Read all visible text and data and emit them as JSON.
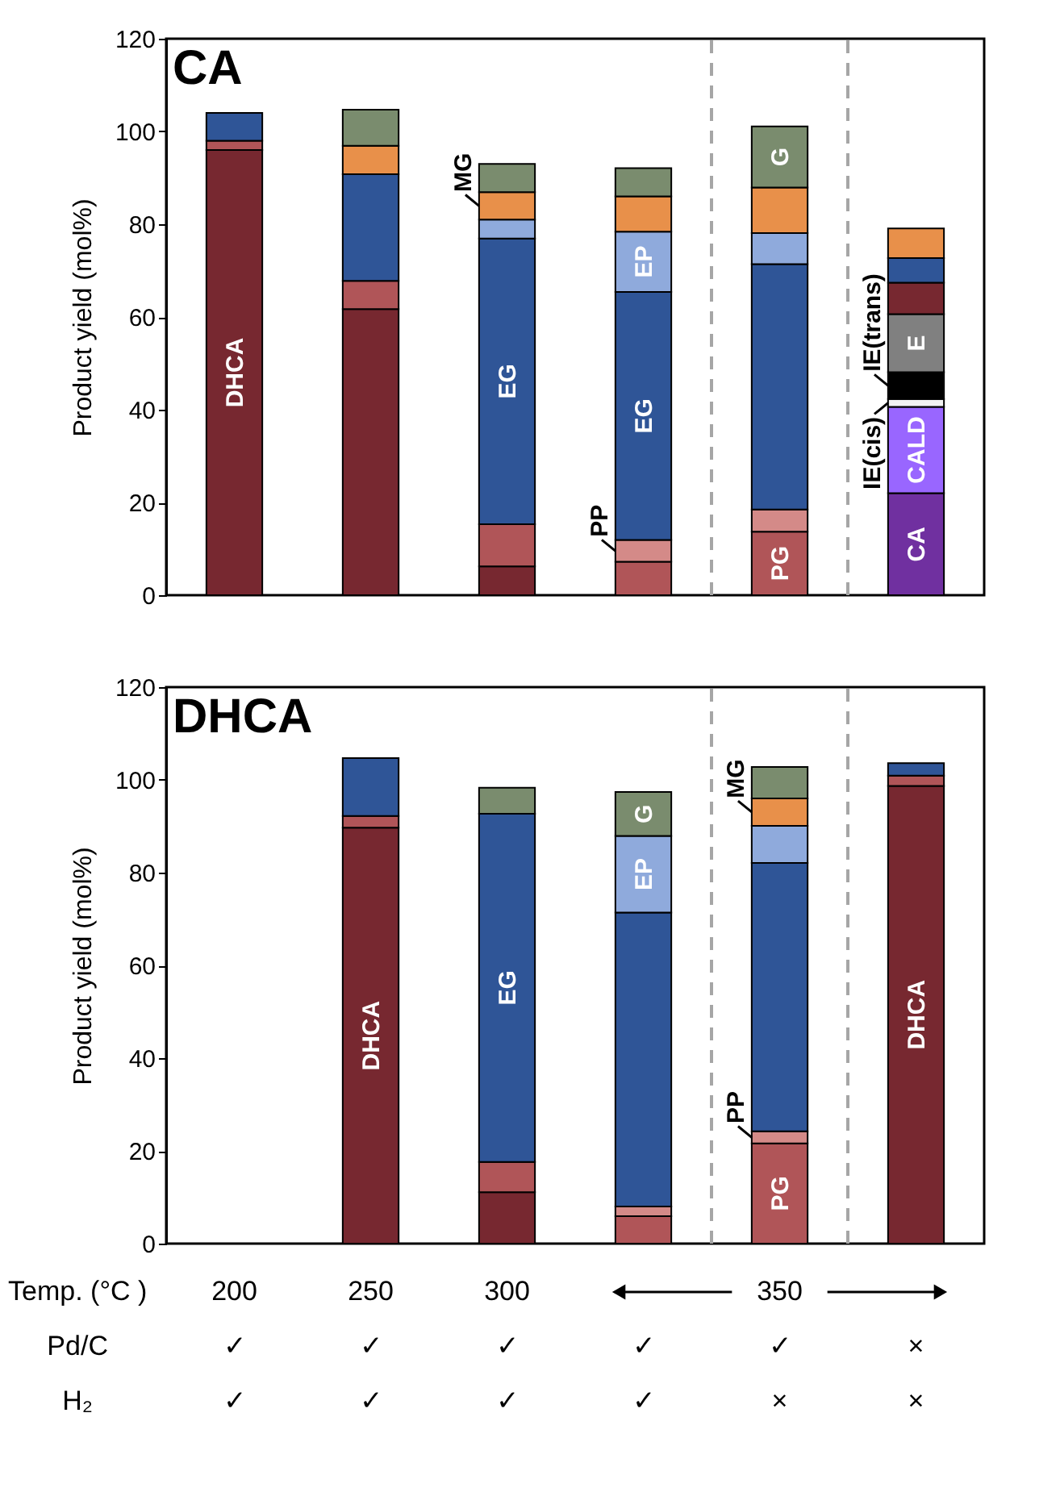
{
  "chart_data": [
    {
      "type": "bar",
      "stacked": true,
      "title": "CA",
      "ylabel": "Product yield (mol%)",
      "categories": [
        "200",
        "250",
        "300",
        null,
        "350",
        null
      ],
      "tick_labels": "y",
      "ylim": [
        0,
        120
      ],
      "yticks": [
        0,
        20,
        40,
        60,
        80,
        100,
        120
      ],
      "grid": false,
      "series": [
        {
          "color": "#7030a0",
          "values": [
            null,
            null,
            null,
            null,
            null,
            22
          ],
          "value_labels": [
            null,
            null,
            null,
            null,
            null,
            "CA"
          ]
        },
        {
          "color": "#9966ff",
          "values": [
            null,
            null,
            null,
            null,
            null,
            18.6
          ],
          "value_labels": [
            null,
            null,
            null,
            null,
            null,
            "CALD"
          ]
        },
        {
          "color": "#f2f2f2",
          "values": [
            null,
            null,
            null,
            null,
            null,
            1.7
          ],
          "value_labels": [
            null,
            null,
            null,
            null,
            null,
            "IE(cis)"
          ]
        },
        {
          "color": "#000000",
          "values": [
            null,
            null,
            null,
            null,
            null,
            5.8
          ],
          "value_labels": [
            null,
            null,
            null,
            null,
            null,
            "IE(trans)"
          ]
        },
        {
          "color": "#808080",
          "values": [
            null,
            null,
            null,
            null,
            null,
            12.5
          ],
          "value_labels": [
            null,
            null,
            null,
            null,
            null,
            "E"
          ]
        },
        {
          "color": "#772830",
          "values": [
            96,
            61.7,
            6.2,
            null,
            null,
            6.8
          ],
          "value_labels": [
            "DHCA",
            null,
            null,
            null,
            null,
            null
          ]
        },
        {
          "color": "#b05558",
          "values": [
            2,
            6.1,
            9.1,
            7.2,
            13.7,
            null
          ],
          "value_labels": [
            null,
            null,
            null,
            null,
            "PG",
            null
          ]
        },
        {
          "color": "#d48a88",
          "values": [
            null,
            null,
            null,
            4.7,
            4.8,
            null
          ],
          "value_labels": [
            null,
            null,
            null,
            "PP",
            null,
            null
          ]
        },
        {
          "color": "#2f5597",
          "values": [
            6,
            23,
            61.6,
            53.5,
            52.9,
            5.3
          ],
          "value_labels": [
            null,
            null,
            "EG",
            "EG",
            null,
            null
          ]
        },
        {
          "color": "#8faadc",
          "values": [
            null,
            null,
            4.1,
            13,
            6.7,
            null
          ],
          "value_labels": [
            null,
            null,
            null,
            "EP",
            null,
            null
          ]
        },
        {
          "color": "#e8904a",
          "values": [
            null,
            6.1,
            5.9,
            7.6,
            9.8,
            6.4
          ],
          "value_labels": [
            null,
            null,
            "MG",
            null,
            null,
            null
          ]
        },
        {
          "color": "#7a8c6e",
          "values": [
            null,
            7.8,
            6.1,
            6.1,
            13.2,
            null
          ],
          "value_labels": [
            null,
            null,
            null,
            null,
            "G",
            null
          ]
        }
      ]
    },
    {
      "type": "bar",
      "stacked": true,
      "title": "DHCA",
      "ylabel": "Product yield (mol%)",
      "xlabel": "Temp. (°C )",
      "categories": [
        "200",
        "250",
        "300",
        null,
        "350",
        null
      ],
      "ylim": [
        0,
        120
      ],
      "yticks": [
        0,
        20,
        40,
        60,
        80,
        100,
        120
      ],
      "grid": false,
      "annotations": [
        "Pd/C",
        "✓",
        "✓",
        "✓",
        "✓",
        "✓",
        "×",
        "H₂",
        "✓",
        "✓",
        "✓",
        "✓",
        "×",
        "×"
      ],
      "series": [
        {
          "color": "#772830",
          "values": [
            null,
            89.7,
            11.1,
            null,
            null,
            98.7
          ],
          "value_labels": [
            null,
            "DHCA",
            null,
            null,
            null,
            "DHCA"
          ]
        },
        {
          "color": "#b05558",
          "values": [
            null,
            2.5,
            6.5,
            5.9,
            21.6,
            2.2
          ],
          "value_labels": [
            null,
            null,
            null,
            null,
            "PG",
            null
          ]
        },
        {
          "color": "#d48a88",
          "values": [
            null,
            null,
            null,
            2.1,
            2.6,
            null
          ],
          "value_labels": [
            null,
            null,
            null,
            null,
            "PP",
            null
          ]
        },
        {
          "color": "#2f5597",
          "values": [
            null,
            12.5,
            75.1,
            63.4,
            57.9,
            2.7
          ],
          "value_labels": [
            null,
            null,
            "EG",
            null,
            null,
            null
          ]
        },
        {
          "color": "#8faadc",
          "values": [
            null,
            null,
            null,
            16.5,
            8,
            null
          ],
          "value_labels": [
            null,
            null,
            null,
            "EP",
            null,
            null
          ]
        },
        {
          "color": "#e8904a",
          "values": [
            null,
            null,
            null,
            null,
            5.9,
            null
          ],
          "value_labels": [
            null,
            null,
            null,
            null,
            "MG",
            null
          ]
        },
        {
          "color": "#7a8c6e",
          "values": [
            null,
            null,
            5.6,
            9.5,
            6.8,
            null
          ],
          "value_labels": [
            null,
            null,
            null,
            "G",
            null,
            null
          ]
        }
      ]
    }
  ]
}
